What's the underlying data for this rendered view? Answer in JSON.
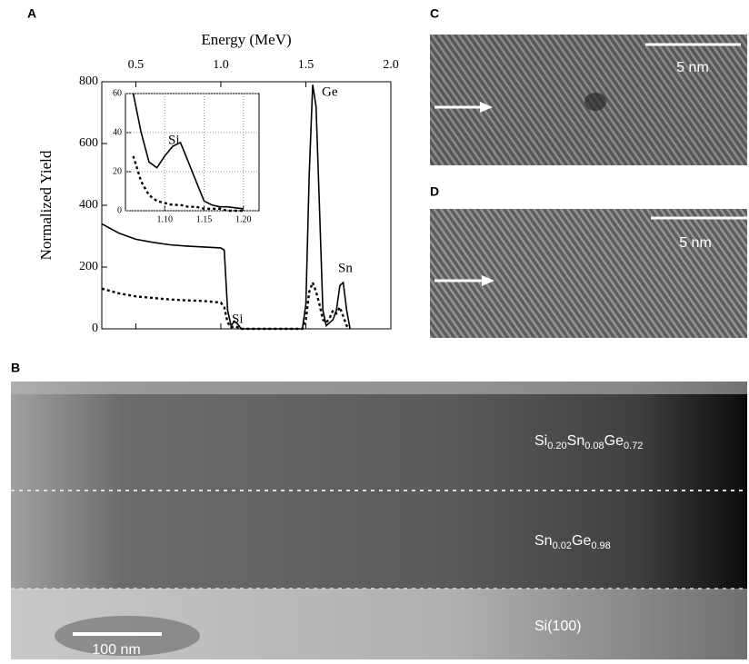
{
  "chart_data": [
    {
      "type": "line",
      "panel": "A",
      "xlabel": "Energy (MeV)",
      "ylabel": "Normalized Yield",
      "x": [
        0.3,
        0.4,
        0.5,
        0.6,
        0.7,
        0.8,
        0.9,
        1.0,
        1.02,
        1.04,
        1.06,
        1.08,
        1.1,
        1.12,
        1.14,
        1.4,
        1.48,
        1.5,
        1.52,
        1.54,
        1.56,
        1.58,
        1.6,
        1.62,
        1.64,
        1.66,
        1.68,
        1.7,
        1.72,
        1.74,
        1.76
      ],
      "series": [
        {
          "color": "#000000",
          "style": "solid",
          "values": [
            340,
            310,
            290,
            280,
            272,
            268,
            265,
            262,
            255,
            60,
            10,
            25,
            15,
            0,
            0,
            0,
            0,
            80,
            500,
            790,
            720,
            400,
            60,
            10,
            20,
            30,
            60,
            140,
            150,
            60,
            0
          ]
        },
        {
          "color": "#000000",
          "style": "dashed",
          "values": [
            130,
            115,
            105,
            100,
            95,
            92,
            90,
            85,
            70,
            20,
            5,
            8,
            5,
            0,
            0,
            0,
            0,
            30,
            120,
            150,
            120,
            80,
            30,
            20,
            35,
            60,
            50,
            70,
            40,
            10,
            0
          ]
        }
      ],
      "xlim": [
        0.3,
        2.0
      ],
      "xticks": [
        0.5,
        {
          "value": 1,
          "label": "1.0"
        },
        1.5,
        {
          "value": 2,
          "label": "2.0"
        }
      ],
      "ylim": [
        0,
        800
      ],
      "yticks": [
        0,
        200,
        400,
        600,
        800
      ],
      "annotations": [
        "Si",
        "Ge",
        "Sn"
      ]
    },
    {
      "type": "line",
      "inset": true,
      "x": [
        1.06,
        1.07,
        1.08,
        1.09,
        1.1,
        1.11,
        1.12,
        1.13,
        1.14,
        1.15,
        1.16,
        1.17,
        1.18,
        1.2
      ],
      "series": [
        {
          "color": "#000000",
          "style": "solid",
          "values": [
            60,
            40,
            25,
            22,
            28,
            33,
            35,
            25,
            15,
            5,
            3,
            2,
            2,
            1
          ]
        },
        {
          "color": "#000000",
          "style": "dashed",
          "values": [
            28,
            15,
            8,
            5,
            4,
            3,
            3,
            2,
            2,
            1,
            1,
            1,
            0,
            0
          ]
        }
      ],
      "xlim": [
        1.05,
        1.22
      ],
      "xticks": [
        {
          "value": 1.1,
          "label": "1.10"
        },
        1.15,
        {
          "value": 1.2,
          "label": "1.20"
        }
      ],
      "ylim": [
        0,
        60
      ],
      "yticks": [
        0,
        20,
        40,
        60
      ],
      "grid": true,
      "annotations": [
        "Si"
      ]
    }
  ],
  "panels": {
    "B": {
      "label": "B",
      "scale_bar": "100 nm",
      "layers": [
        [
          "Si",
          "0.20",
          "Sn",
          "0.08",
          "Ge",
          "0.72"
        ],
        [
          "Sn",
          "0.02",
          "Ge",
          "0.98"
        ],
        [
          "Si(100)"
        ]
      ]
    },
    "C": {
      "label": "C",
      "scale_bar": "5 nm"
    },
    "D": {
      "label": "D",
      "scale_bar": "5 nm"
    }
  }
}
